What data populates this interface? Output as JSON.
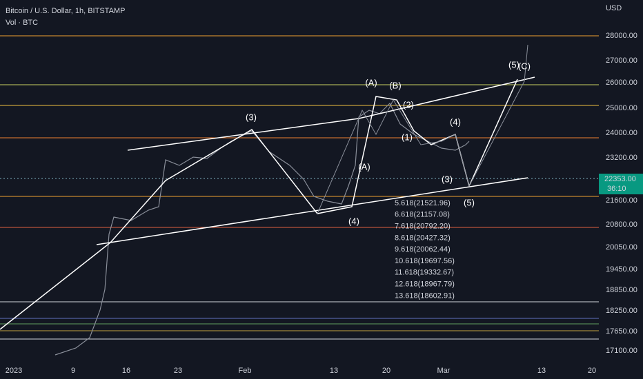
{
  "header": {
    "symbol": "Bitcoin / U.S. Dollar, 1h, BITSTAMP",
    "volume": "Vol · BTC"
  },
  "price_axis": {
    "unit": "USD",
    "ticks": [
      "28000.00",
      "27000.00",
      "26000.00",
      "25000.00",
      "24000.00",
      "23200.00",
      "21600.00",
      "20800.00",
      "20050.00",
      "19450.00",
      "18850.00",
      "18250.00",
      "17650.00",
      "17100.00"
    ],
    "current": "22353.00",
    "countdown": "36:10"
  },
  "time_axis": {
    "labels": [
      "2023",
      "9",
      "16",
      "23",
      "Feb",
      "13",
      "20",
      "Mar",
      "13",
      "20"
    ]
  },
  "waves": [
    "(3)",
    "(A)",
    "(B)",
    "(2)",
    "(4)",
    "(5)",
    "(C)",
    "(A)",
    "(1)",
    "(3)",
    "(4)",
    "(5)"
  ],
  "fib_levels": [
    "5.618(21521.96)",
    "6.618(21157.08)",
    "7.618(20792.20)",
    "8.618(20427.32)",
    "9.618(20062.44)",
    "10.618(19697.56)",
    "11.618(19332.67)",
    "12.618(18967.79)",
    "13.618(18602.91)"
  ]
}
